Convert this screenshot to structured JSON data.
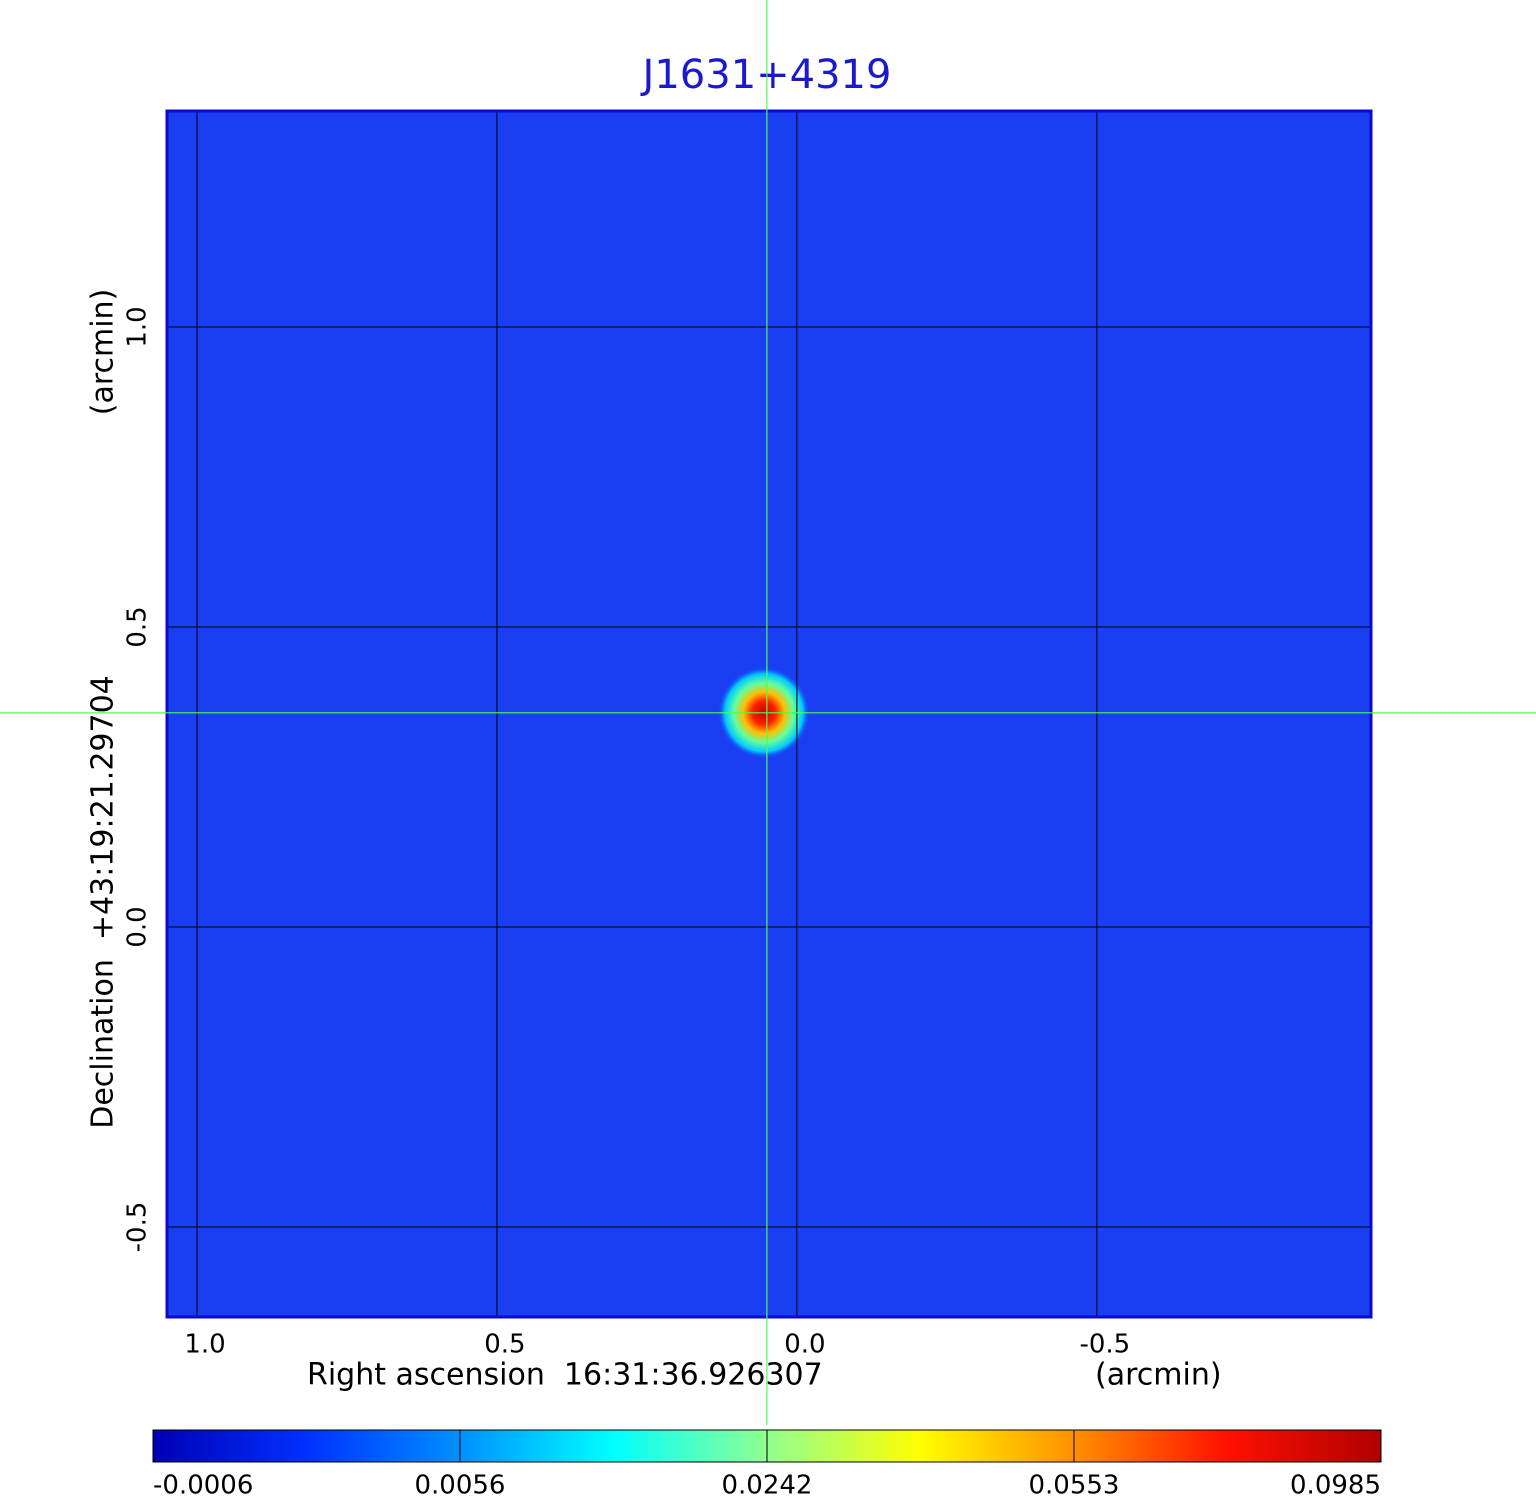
{
  "chart_data": {
    "type": "image",
    "title": "J1631+4319",
    "xlabel": "Right ascension  16:31:36.926307",
    "xunit": "(arcmin)",
    "ylabel": "Declination  +43:19:21.29704",
    "yunit": "(arcmin)",
    "xlim": [
      1.05,
      -0.957
    ],
    "ylim": [
      -0.65,
      1.36
    ],
    "xticks": [
      {
        "value": 1,
        "label": "1.0"
      },
      0.5,
      {
        "value": 0,
        "label": "0.0"
      },
      -0.5
    ],
    "yticks": [
      {
        "value": 1,
        "label": "1.0"
      },
      0.5,
      {
        "value": 0,
        "label": "0.0"
      },
      -0.5
    ],
    "grid": true,
    "background_color": "#1a3ef2",
    "crosshair": {
      "x": 0.05,
      "y": 0.357,
      "color": "#4cff4c"
    },
    "source": {
      "x": 0.055,
      "y": 0.357,
      "peak": 0.0985
    },
    "colorbar": {
      "ticks": [
        -0.0006,
        0.0056,
        0.0242,
        0.0553,
        0.0985
      ],
      "colors": [
        "#0000b4",
        "#0030ff",
        "#0090ff",
        "#00ffff",
        "#90ff90",
        "#ffff00",
        "#ff9000",
        "#ff1000",
        "#b00000"
      ]
    }
  }
}
